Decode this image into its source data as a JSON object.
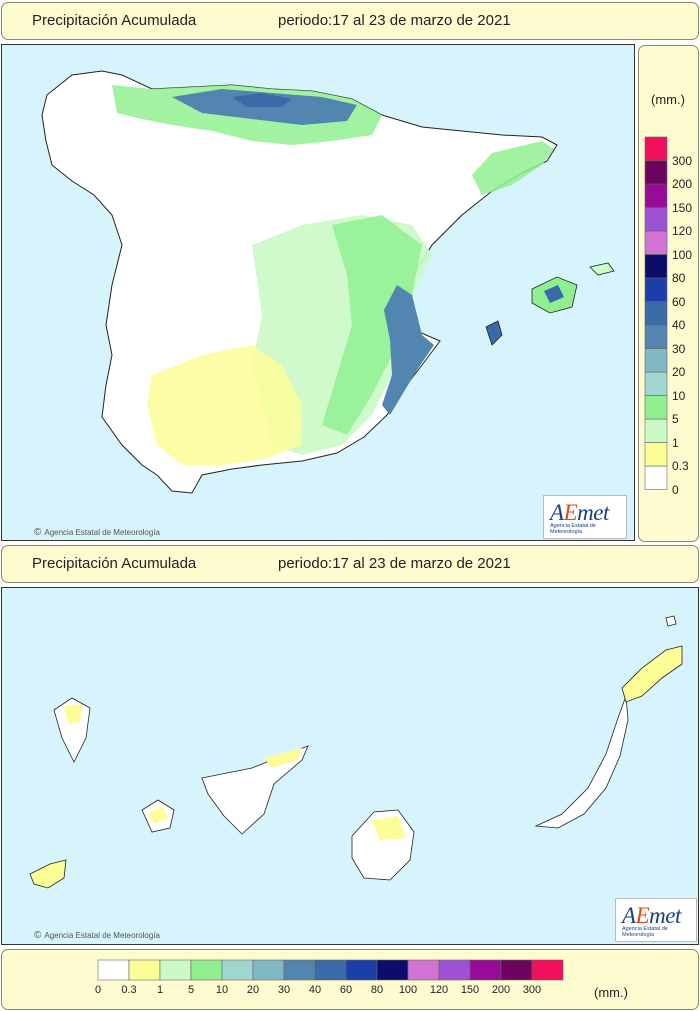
{
  "header": {
    "title": "Precipitación Acumulada",
    "period": "periodo:17 al 23 de marzo de 2021"
  },
  "peninsula": {
    "credit": "Agencia Estatal de Meteorología"
  },
  "canarias": {
    "credit": "Agencia Estatal de Meteorología"
  },
  "logo": {
    "text_a": "A",
    "text_e": "E",
    "text_rest": "met",
    "subtitle": "Agencia Estatal de Meteorología"
  },
  "legend": {
    "units": "(mm.)",
    "classes": [
      {
        "label": "0",
        "color": "#ffffff"
      },
      {
        "label": "0.3",
        "color": "#fdfd98"
      },
      {
        "label": "1",
        "color": "#ccfac6"
      },
      {
        "label": "5",
        "color": "#90f090"
      },
      {
        "label": "10",
        "color": "#a0d6d0"
      },
      {
        "label": "20",
        "color": "#80b8c6"
      },
      {
        "label": "30",
        "color": "#5286b0"
      },
      {
        "label": "40",
        "color": "#3a6aa8"
      },
      {
        "label": "60",
        "color": "#1c3ea8"
      },
      {
        "label": "80",
        "color": "#0c0c6a"
      },
      {
        "label": "100",
        "color": "#d272d2"
      },
      {
        "label": "120",
        "color": "#9c52d2"
      },
      {
        "label": "150",
        "color": "#980a98"
      },
      {
        "label": "200",
        "color": "#6c0460"
      },
      {
        "label": "300",
        "color": "#f0105c"
      }
    ]
  }
}
